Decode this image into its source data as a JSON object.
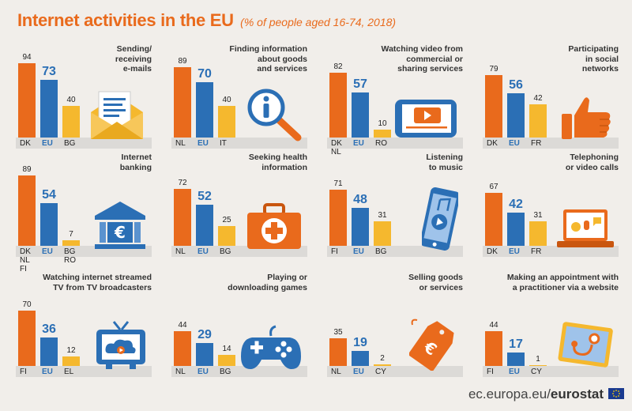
{
  "title": "Internet activities in the EU",
  "subtitle": "(% of people aged 16-74, 2018)",
  "footer": {
    "url": "ec.europa.eu/",
    "brand": "eurostat"
  },
  "colors": {
    "orange": "#e96a1c",
    "blue": "#2b6fb5",
    "yellow": "#f5b82e"
  },
  "chart_data": [
    {
      "type": "bar",
      "title": "Sending/ receiving e-mails",
      "title_lines": [
        "Sending/",
        "receiving",
        "e-mails"
      ],
      "categories": [
        "DK",
        "EU",
        "BG"
      ],
      "values": [
        94,
        73,
        40
      ],
      "icon": "envelope-icon"
    },
    {
      "type": "bar",
      "title": "Finding information about goods and services",
      "title_lines": [
        "Finding information",
        "about goods",
        "and services"
      ],
      "categories": [
        "NL",
        "EU",
        "IT"
      ],
      "values": [
        89,
        70,
        40
      ],
      "icon": "magnifier-info-icon"
    },
    {
      "type": "bar",
      "title": "Watching video from commercial or sharing services",
      "title_lines": [
        "Watching video from",
        "commercial or",
        "sharing services"
      ],
      "categories": [
        "DK NL",
        "EU",
        "RO"
      ],
      "values": [
        82,
        57,
        10
      ],
      "icon": "video-phone-icon"
    },
    {
      "type": "bar",
      "title": "Participating in social networks",
      "title_lines": [
        "Participating",
        "in social",
        "networks"
      ],
      "categories": [
        "DK",
        "EU",
        "FR"
      ],
      "values": [
        79,
        56,
        42
      ],
      "icon": "thumbs-up-icon"
    },
    {
      "type": "bar",
      "title": "Internet banking",
      "title_lines": [
        "Internet",
        "banking"
      ],
      "categories": [
        "DK NL FI",
        "EU",
        "BG RO"
      ],
      "values": [
        89,
        54,
        7
      ],
      "icon": "bank-euro-icon"
    },
    {
      "type": "bar",
      "title": "Seeking health information",
      "title_lines": [
        "Seeking health",
        "information"
      ],
      "categories": [
        "NL",
        "EU",
        "BG"
      ],
      "values": [
        72,
        52,
        25
      ],
      "icon": "first-aid-kit-icon"
    },
    {
      "type": "bar",
      "title": "Listening to music",
      "title_lines": [
        "Listening",
        "to music"
      ],
      "categories": [
        "FI",
        "EU",
        "BG"
      ],
      "values": [
        71,
        48,
        31
      ],
      "icon": "music-phone-icon"
    },
    {
      "type": "bar",
      "title": "Telephoning or video calls",
      "title_lines": [
        "Telephoning",
        "or video calls"
      ],
      "categories": [
        "DK",
        "EU",
        "FR"
      ],
      "values": [
        67,
        42,
        31
      ],
      "icon": "laptop-call-icon"
    },
    {
      "type": "bar",
      "title": "Watching internet streamed TV from TV broadcasters",
      "title_lines": [
        "Watching internet streamed",
        "TV from TV broadcasters"
      ],
      "categories": [
        "FI",
        "EU",
        "EL"
      ],
      "values": [
        70,
        36,
        12
      ],
      "icon": "tv-cloud-icon"
    },
    {
      "type": "bar",
      "title": "Playing or downloading games",
      "title_lines": [
        "Playing or",
        "downloading games"
      ],
      "categories": [
        "NL",
        "EU",
        "BG"
      ],
      "values": [
        44,
        29,
        14
      ],
      "icon": "gamepad-icon"
    },
    {
      "type": "bar",
      "title": "Selling goods or services",
      "title_lines": [
        "Selling goods",
        "or services"
      ],
      "categories": [
        "NL",
        "EU",
        "CY"
      ],
      "values": [
        35,
        19,
        2
      ],
      "icon": "euro-tag-icon"
    },
    {
      "type": "bar",
      "title": "Making an appointment with a practitioner via a website",
      "title_lines": [
        "Making an appointment with",
        "a practitioner via a website"
      ],
      "categories": [
        "FI",
        "EU",
        "CY"
      ],
      "values": [
        44,
        17,
        1
      ],
      "icon": "tablet-stethoscope-icon"
    }
  ]
}
